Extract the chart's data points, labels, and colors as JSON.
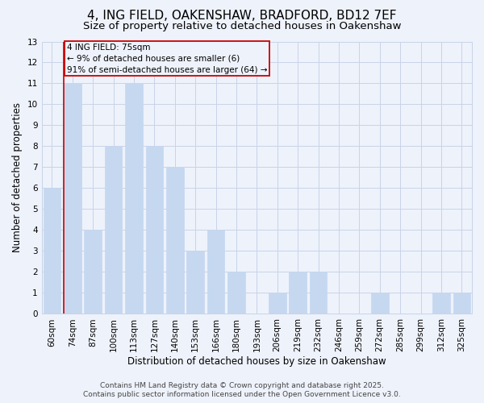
{
  "title": "4, ING FIELD, OAKENSHAW, BRADFORD, BD12 7EF",
  "subtitle": "Size of property relative to detached houses in Oakenshaw",
  "xlabel": "Distribution of detached houses by size in Oakenshaw",
  "ylabel": "Number of detached properties",
  "categories": [
    "60sqm",
    "74sqm",
    "87sqm",
    "100sqm",
    "113sqm",
    "127sqm",
    "140sqm",
    "153sqm",
    "166sqm",
    "180sqm",
    "193sqm",
    "206sqm",
    "219sqm",
    "232sqm",
    "246sqm",
    "259sqm",
    "272sqm",
    "285sqm",
    "299sqm",
    "312sqm",
    "325sqm"
  ],
  "values": [
    6,
    11,
    4,
    8,
    11,
    8,
    7,
    3,
    4,
    2,
    0,
    1,
    2,
    2,
    0,
    0,
    1,
    0,
    0,
    1,
    1
  ],
  "bar_color": "#c5d8f0",
  "bar_edgecolor": "#c5d8f0",
  "marker_line_index": 1,
  "marker_line_color": "#cc0000",
  "annotation_line1": "4 ING FIELD: 75sqm",
  "annotation_line2": "← 9% of detached houses are smaller (6)",
  "annotation_line3": "91% of semi-detached houses are larger (64) →",
  "annotation_box_color": "#cc0000",
  "ylim": [
    0,
    13
  ],
  "yticks": [
    0,
    1,
    2,
    3,
    4,
    5,
    6,
    7,
    8,
    9,
    10,
    11,
    12,
    13
  ],
  "grid_color": "#c8d4e8",
  "background_color": "#eef2fb",
  "footer_line1": "Contains HM Land Registry data © Crown copyright and database right 2025.",
  "footer_line2": "Contains public sector information licensed under the Open Government Licence v3.0.",
  "title_fontsize": 11,
  "subtitle_fontsize": 9.5,
  "tick_fontsize": 7.5,
  "ylabel_fontsize": 8.5,
  "xlabel_fontsize": 8.5,
  "annotation_fontsize": 7.5,
  "footer_fontsize": 6.5
}
